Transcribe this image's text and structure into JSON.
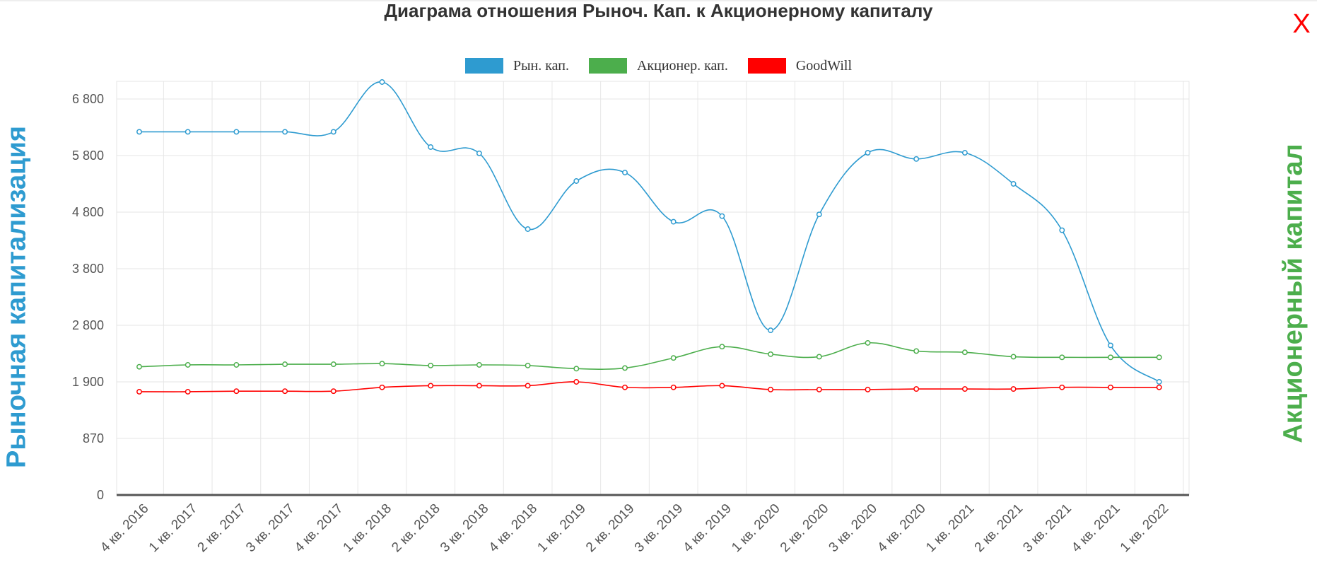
{
  "title": "Диаграма отношения Рыноч. Кап. к Акционерному капиталу",
  "close_label": "X",
  "y_axis_left_label": "Рыночная капитализация",
  "y_axis_right_label": "Акционерный капитал",
  "legend": [
    {
      "label": "Рын. кап.",
      "color": "#2e9bd0"
    },
    {
      "label": "Акционер. кап.",
      "color": "#4cae4c"
    },
    {
      "label": "GoodWill",
      "color": "#ff0000"
    }
  ],
  "chart_data": {
    "type": "line",
    "title": "Диаграма отношения Рыноч. Кап. к Акционерному капиталу",
    "xlabel": "",
    "ylabel": "Рыночная капитализация",
    "ylabel_right": "Акционерный капитал",
    "y_ticks": [
      0,
      870,
      1900,
      2800,
      3800,
      4800,
      5800,
      6800
    ],
    "y_tick_labels": [
      "0",
      "870",
      "1 900",
      "2 800",
      "3 800",
      "4 800",
      "5 800",
      "6 800"
    ],
    "categories": [
      "4 кв. 2016",
      "1 кв. 2017",
      "2 кв. 2017",
      "3 кв. 2017",
      "4 кв. 2017",
      "1 кв. 2018",
      "2 кв. 2018",
      "3 кв. 2018",
      "4 кв. 2018",
      "1 кв. 2019",
      "2 кв. 2019",
      "3 кв. 2019",
      "4 кв. 2019",
      "1 кв. 2020",
      "2 кв. 2020",
      "3 кв. 2020",
      "4 кв. 2020",
      "1 кв. 2021",
      "2 кв. 2021",
      "3 кв. 2021",
      "4 кв. 2021",
      "1 кв. 2022"
    ],
    "grid": true,
    "legend_position": "top-center",
    "series": [
      {
        "name": "Рын. кап.",
        "color": "#2e9bd0",
        "values": [
          6220,
          6220,
          6220,
          6220,
          6220,
          7100,
          5950,
          5840,
          4500,
          5350,
          5500,
          4630,
          4730,
          2720,
          4760,
          5850,
          5740,
          5850,
          5300,
          4480,
          2480,
          1900
        ]
      },
      {
        "name": "Акционер. кап.",
        "color": "#4cae4c",
        "values": [
          2140,
          2170,
          2170,
          2180,
          2180,
          2190,
          2160,
          2170,
          2160,
          2110,
          2120,
          2280,
          2460,
          2340,
          2300,
          2520,
          2390,
          2370,
          2300,
          2290,
          2290,
          2290
        ]
      },
      {
        "name": "GoodWill",
        "color": "#ff0000",
        "values": [
          1720,
          1720,
          1730,
          1730,
          1730,
          1800,
          1830,
          1830,
          1830,
          1900,
          1800,
          1800,
          1830,
          1760,
          1760,
          1760,
          1770,
          1770,
          1770,
          1800,
          1800,
          1800
        ]
      }
    ]
  }
}
